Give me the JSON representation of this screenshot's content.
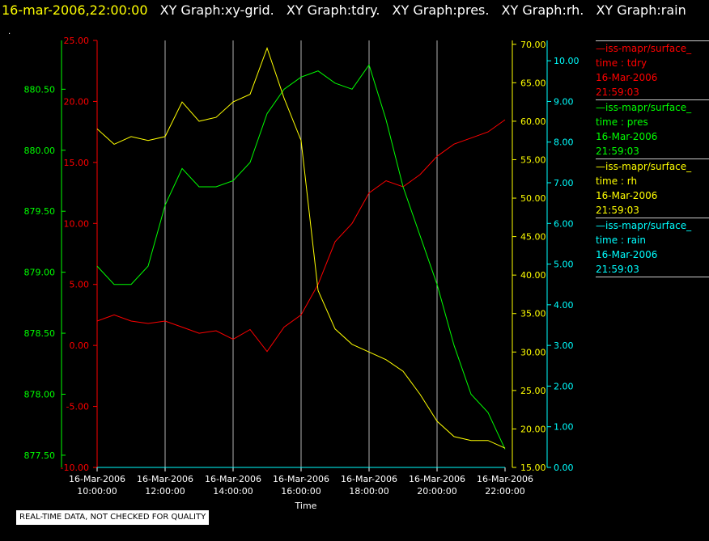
{
  "header": {
    "timestamp": "16-mar-2006,22:00:00",
    "titles": [
      "XY Graph:xy-grid.",
      "XY Graph:tdry.",
      "XY Graph:pres.",
      "XY Graph:rh.",
      "XY Graph:rain"
    ]
  },
  "dot": ".",
  "footer": "REAL-TIME DATA, NOT CHECKED FOR QUALITY",
  "legend": [
    {
      "source": "iss-mapr/surface_",
      "field": "time : tdry",
      "date": "16-Mar-2006",
      "time": "21:59:03",
      "color": "#ff0000"
    },
    {
      "source": "iss-mapr/surface_",
      "field": "time : pres",
      "date": "16-Mar-2006",
      "time": "21:59:03",
      "color": "#00ff00"
    },
    {
      "source": "iss-mapr/surface_",
      "field": "time : rh",
      "date": "16-Mar-2006",
      "time": "21:59:03",
      "color": "#ffff00"
    },
    {
      "source": "iss-mapr/surface_",
      "field": "time : rain",
      "date": "16-Mar-2006",
      "time": "21:59:03",
      "color": "#00ffff"
    }
  ],
  "chart_data": {
    "type": "line",
    "xlabel": "Time",
    "xlim": [
      "16-Mar-2006 10:00:00",
      "16-Mar-2006 22:00:00"
    ],
    "x_ticks": [
      {
        "date": "16-Mar-2006",
        "time": "10:00:00"
      },
      {
        "date": "16-Mar-2006",
        "time": "12:00:00"
      },
      {
        "date": "16-Mar-2006",
        "time": "14:00:00"
      },
      {
        "date": "16-Mar-2006",
        "time": "16:00:00"
      },
      {
        "date": "16-Mar-2006",
        "time": "18:00:00"
      },
      {
        "date": "16-Mar-2006",
        "time": "20:00:00"
      },
      {
        "date": "16-Mar-2006",
        "time": "22:00:00"
      }
    ],
    "grid": "vertical",
    "axes": {
      "pres": {
        "color": "#00ff00",
        "side": "left-outer",
        "range": [
          877.4,
          880.9
        ],
        "ticks": [
          "877.50",
          "878.00",
          "878.50",
          "879.00",
          "879.50",
          "880.00",
          "880.50"
        ]
      },
      "tdry": {
        "color": "#ff0000",
        "side": "left-inner",
        "range": [
          -10,
          25
        ],
        "ticks": [
          "-10.00",
          "-5.00",
          "0.00",
          "5.00",
          "10.00",
          "15.00",
          "20.00",
          "25.00"
        ]
      },
      "rh": {
        "color": "#ffff00",
        "side": "right-inner",
        "range": [
          15,
          70.5
        ],
        "ticks": [
          "15.00",
          "20.00",
          "25.00",
          "30.00",
          "35.00",
          "40.00",
          "45.00",
          "50.00",
          "55.00",
          "60.00",
          "65.00",
          "70.00"
        ]
      },
      "rain": {
        "color": "#00ffff",
        "side": "right-outer",
        "range": [
          0,
          10.5
        ],
        "ticks": [
          "0.00",
          "1.00",
          "2.00",
          "3.00",
          "4.00",
          "5.00",
          "6.00",
          "7.00",
          "8.00",
          "9.00",
          "10.00"
        ]
      }
    },
    "series": [
      {
        "name": "tdry",
        "axis": "tdry",
        "color": "#ff0000",
        "x": [
          "16-Mar-2006 10:00",
          "16-Mar-2006 10:30",
          "16-Mar-2006 11:00",
          "16-Mar-2006 11:30",
          "16-Mar-2006 12:00",
          "16-Mar-2006 12:30",
          "16-Mar-2006 13:00",
          "16-Mar-2006 13:30",
          "16-Mar-2006 14:00",
          "16-Mar-2006 14:30",
          "16-Mar-2006 15:00",
          "16-Mar-2006 15:30",
          "16-Mar-2006 16:00",
          "16-Mar-2006 16:30",
          "16-Mar-2006 17:00",
          "16-Mar-2006 17:30",
          "16-Mar-2006 18:00",
          "16-Mar-2006 18:30",
          "16-Mar-2006 19:00",
          "16-Mar-2006 19:30",
          "16-Mar-2006 20:00",
          "16-Mar-2006 20:30",
          "16-Mar-2006 21:00",
          "16-Mar-2006 21:30",
          "16-Mar-2006 22:00"
        ],
        "values": [
          2.0,
          2.5,
          2.0,
          1.8,
          2.0,
          1.5,
          1.0,
          1.2,
          0.5,
          1.3,
          -0.5,
          1.5,
          2.5,
          5.0,
          8.5,
          10.0,
          12.5,
          13.5,
          13.0,
          14.0,
          15.5,
          16.5,
          17.0,
          17.5,
          18.5
        ]
      },
      {
        "name": "pres",
        "axis": "pres",
        "color": "#00ff00",
        "x": [
          "16-Mar-2006 10:00",
          "16-Mar-2006 10:30",
          "16-Mar-2006 11:00",
          "16-Mar-2006 11:30",
          "16-Mar-2006 12:00",
          "16-Mar-2006 12:30",
          "16-Mar-2006 13:00",
          "16-Mar-2006 13:30",
          "16-Mar-2006 14:00",
          "16-Mar-2006 14:30",
          "16-Mar-2006 15:00",
          "16-Mar-2006 15:30",
          "16-Mar-2006 16:00",
          "16-Mar-2006 16:30",
          "16-Mar-2006 17:00",
          "16-Mar-2006 17:30",
          "16-Mar-2006 18:00",
          "16-Mar-2006 18:30",
          "16-Mar-2006 19:00",
          "16-Mar-2006 19:30",
          "16-Mar-2006 20:00",
          "16-Mar-2006 20:30",
          "16-Mar-2006 21:00",
          "16-Mar-2006 21:30",
          "16-Mar-2006 22:00"
        ],
        "values": [
          879.05,
          878.9,
          878.9,
          879.05,
          879.55,
          879.85,
          879.7,
          879.7,
          879.75,
          879.9,
          880.3,
          880.5,
          880.6,
          880.65,
          880.55,
          880.5,
          880.7,
          880.25,
          879.7,
          879.3,
          878.9,
          878.4,
          878.0,
          877.85,
          877.55
        ]
      },
      {
        "name": "rh",
        "axis": "rh",
        "color": "#ffff00",
        "x": [
          "16-Mar-2006 10:00",
          "16-Mar-2006 10:30",
          "16-Mar-2006 11:00",
          "16-Mar-2006 11:30",
          "16-Mar-2006 12:00",
          "16-Mar-2006 12:30",
          "16-Mar-2006 13:00",
          "16-Mar-2006 13:30",
          "16-Mar-2006 14:00",
          "16-Mar-2006 14:30",
          "16-Mar-2006 15:00",
          "16-Mar-2006 15:30",
          "16-Mar-2006 16:00",
          "16-Mar-2006 16:30",
          "16-Mar-2006 17:00",
          "16-Mar-2006 17:30",
          "16-Mar-2006 18:00",
          "16-Mar-2006 18:30",
          "16-Mar-2006 19:00",
          "16-Mar-2006 19:30",
          "16-Mar-2006 20:00",
          "16-Mar-2006 20:30",
          "16-Mar-2006 21:00",
          "16-Mar-2006 21:30",
          "16-Mar-2006 22:00"
        ],
        "values": [
          59.0,
          57.0,
          58.0,
          57.5,
          58.0,
          62.5,
          60.0,
          60.5,
          62.5,
          63.5,
          69.5,
          63.0,
          57.5,
          38.0,
          33.0,
          31.0,
          30.0,
          29.0,
          27.5,
          24.5,
          21.0,
          19.0,
          18.5,
          18.5,
          17.5
        ]
      },
      {
        "name": "rain",
        "axis": "rain",
        "color": "#00ffff",
        "x": [
          "16-Mar-2006 10:00",
          "16-Mar-2006 22:00"
        ],
        "values": [
          0.0,
          0.0
        ]
      }
    ]
  }
}
